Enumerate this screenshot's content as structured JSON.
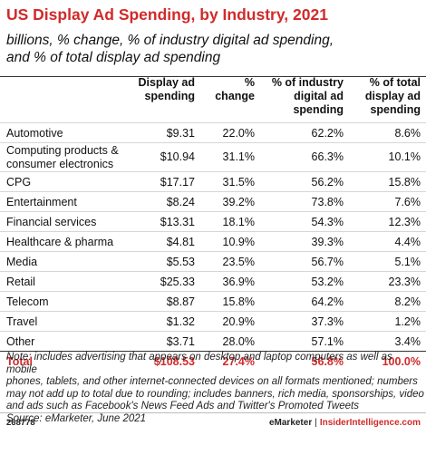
{
  "chart_data": {
    "type": "table",
    "title": "US Display Ad Spending, by Industry, 2021",
    "subtitle": "billions, % change, % of industry digital ad spending, and % of total display ad spending",
    "columns": [
      "",
      "Display ad spending",
      "% change",
      "% of industry digital ad spending",
      "% of total display ad spending"
    ],
    "rows": [
      {
        "industry": "Automotive",
        "spending": "$9.31",
        "change": "22.0%",
        "pct_industry": "62.2%",
        "pct_total": "8.6%"
      },
      {
        "industry": "Computing products & consumer electronics",
        "spending": "$10.94",
        "change": "31.1%",
        "pct_industry": "66.3%",
        "pct_total": "10.1%"
      },
      {
        "industry": "CPG",
        "spending": "$17.17",
        "change": "31.5%",
        "pct_industry": "56.2%",
        "pct_total": "15.8%"
      },
      {
        "industry": "Entertainment",
        "spending": "$8.24",
        "change": "39.2%",
        "pct_industry": "73.8%",
        "pct_total": "7.6%"
      },
      {
        "industry": "Financial services",
        "spending": "$13.31",
        "change": "18.1%",
        "pct_industry": "54.3%",
        "pct_total": "12.3%"
      },
      {
        "industry": "Healthcare & pharma",
        "spending": "$4.81",
        "change": "10.9%",
        "pct_industry": "39.3%",
        "pct_total": "4.4%"
      },
      {
        "industry": "Media",
        "spending": "$5.53",
        "change": "23.5%",
        "pct_industry": "56.7%",
        "pct_total": "5.1%"
      },
      {
        "industry": "Retail",
        "spending": "$25.33",
        "change": "36.9%",
        "pct_industry": "53.2%",
        "pct_total": "23.3%"
      },
      {
        "industry": "Telecom",
        "spending": "$8.87",
        "change": "15.8%",
        "pct_industry": "64.2%",
        "pct_total": "8.2%"
      },
      {
        "industry": "Travel",
        "spending": "$1.32",
        "change": "20.9%",
        "pct_industry": "37.3%",
        "pct_total": "1.2%"
      },
      {
        "industry": "Other",
        "spending": "$3.71",
        "change": "28.0%",
        "pct_industry": "57.1%",
        "pct_total": "3.4%"
      }
    ],
    "total": {
      "industry": "Total",
      "spending": "$108.53",
      "change": "27.4%",
      "pct_industry": "56.8%",
      "pct_total": "100.0%"
    },
    "accent_color": "#d12a2a"
  },
  "header": {
    "title": "US Display Ad Spending, by Industry, 2021",
    "subtitle_line1": "billions, % change, % of industry digital ad spending,",
    "subtitle_line2": "and % of total display ad spending"
  },
  "table_header": {
    "col1_line1": "Display ad",
    "col1_line2": "spending",
    "col2_line1": "%",
    "col2_line2": "change",
    "col3_line1": "% of industry",
    "col3_line2": "digital ad",
    "col3_line3": "spending",
    "col4_line1": "% of total",
    "col4_line2": "display ad",
    "col4_line3": "spending"
  },
  "row_label_split": {
    "line1": "Computing products &",
    "line2": "consumer electronics"
  },
  "notes": {
    "line1": "Note: includes advertising that appears on desktop and laptop computers as well as mobile",
    "line2": "phones, tablets, and other internet-connected devices on all formats mentioned; numbers",
    "line3": "may not add up to total due to rounding; includes banners, rich media, sponsorships, video",
    "line4": "and ads such as Facebook's News Feed Ads and Twitter's Promoted Tweets",
    "source": "Source: eMarketer, June 2021"
  },
  "footer": {
    "chart_id": "268778",
    "brand": "eMarketer",
    "separator": "|",
    "site": "InsiderIntelligence.com"
  }
}
